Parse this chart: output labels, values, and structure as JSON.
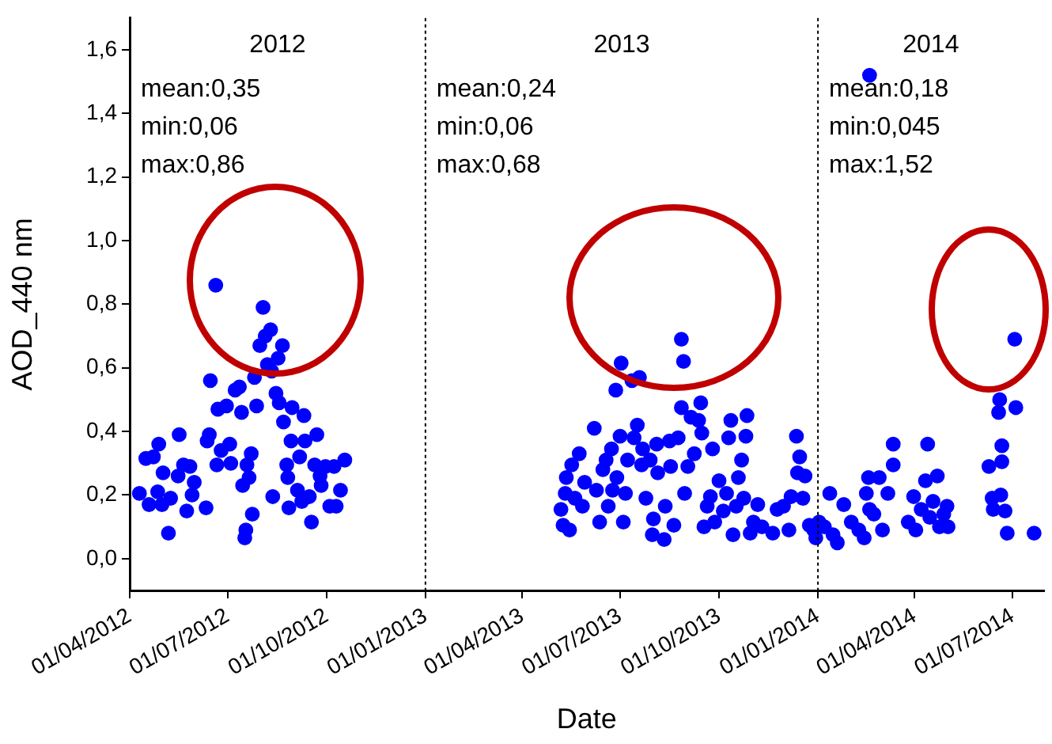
{
  "chart_data": {
    "type": "scatter",
    "xlabel": "Date",
    "ylabel": "AOD_440 nm",
    "x": [
      "2012-04-10",
      "2012-04-16",
      "2012-04-23",
      "2012-04-19",
      "2012-04-27",
      "2012-04-28",
      "2012-05-02",
      "2012-05-01",
      "2012-05-07",
      "2012-05-09",
      "2012-05-17",
      "2012-05-16",
      "2012-05-21",
      "2012-05-24",
      "2012-05-29",
      "2012-05-27",
      "2012-05-31",
      "2012-06-11",
      "2012-06-14",
      "2012-06-15",
      "2012-06-12",
      "2012-06-20",
      "2012-06-21",
      "2012-06-22",
      "2012-06-25",
      "2012-06-30",
      "2012-07-03",
      "2012-07-04",
      "2012-07-08",
      "2012-07-12",
      "2012-07-14",
      "2012-07-15",
      "2012-07-17",
      "2012-07-18",
      "2012-07-19",
      "2012-07-21",
      "2012-07-23",
      "2012-07-24",
      "2012-07-26",
      "2012-07-28",
      "2012-07-31",
      "2012-08-03",
      "2012-08-05",
      "2012-08-07",
      "2012-08-10",
      "2012-08-11",
      "2012-08-12",
      "2012-08-15",
      "2012-08-17",
      "2012-08-18",
      "2012-08-21",
      "2012-08-22",
      "2012-08-25",
      "2012-08-26",
      "2012-08-27",
      "2012-08-30",
      "2012-08-29",
      "2012-09-04",
      "2012-09-06",
      "2012-09-08",
      "2012-09-10",
      "2012-09-11",
      "2012-09-15",
      "2012-09-17",
      "2012-09-20",
      "2012-09-22",
      "2012-09-25",
      "2012-09-26",
      "2012-09-30",
      "2012-10-04",
      "2012-10-08",
      "2012-10-10",
      "2012-10-14",
      "2012-10-18",
      "2013-05-07",
      "2013-05-09",
      "2013-05-11",
      "2013-05-12",
      "2013-05-15",
      "2013-05-17",
      "2013-05-20",
      "2013-05-24",
      "2013-05-27",
      "2013-05-29",
      "2013-06-07",
      "2013-06-09",
      "2013-06-12",
      "2013-06-15",
      "2013-06-18",
      "2013-06-20",
      "2013-06-23",
      "2013-06-24",
      "2013-06-27",
      "2013-06-28",
      "2013-07-01",
      "2013-07-02",
      "2013-07-04",
      "2013-07-06",
      "2013-07-08",
      "2013-07-12",
      "2013-07-14",
      "2013-07-17",
      "2013-07-19",
      "2013-07-21",
      "2013-07-22",
      "2013-07-25",
      "2013-07-29",
      "2013-07-31",
      "2013-08-01",
      "2013-08-04",
      "2013-08-05",
      "2013-08-11",
      "2013-08-12",
      "2013-08-16",
      "2013-08-17",
      "2013-08-20",
      "2013-08-24",
      "2013-08-27",
      "2013-08-27",
      "2013-08-29",
      "2013-08-30",
      "2013-09-02",
      "2013-09-05",
      "2013-09-08",
      "2013-09-12",
      "2013-09-14",
      "2013-09-15",
      "2013-09-17",
      "2013-09-20",
      "2013-09-23",
      "2013-09-25",
      "2013-09-27",
      "2013-10-01",
      "2013-10-05",
      "2013-10-08",
      "2013-10-10",
      "2013-10-12",
      "2013-10-14",
      "2013-10-17",
      "2013-10-19",
      "2013-10-22",
      "2013-10-24",
      "2013-10-26",
      "2013-10-27",
      "2013-10-30",
      "2013-11-02",
      "2013-11-06",
      "2013-11-10",
      "2013-11-20",
      "2013-11-24",
      "2013-11-30",
      "2013-12-05",
      "2013-12-07",
      "2013-12-12",
      "2013-12-13",
      "2013-12-15",
      "2013-12-18",
      "2013-12-20",
      "2013-12-24",
      "2013-12-28",
      "2013-12-30",
      "2014-02-18",
      "2014-01-02",
      "2014-01-07",
      "2014-01-12",
      "2014-01-15",
      "2014-01-19",
      "2014-01-25",
      "2014-02-01",
      "2014-02-08",
      "2014-02-13",
      "2014-02-15",
      "2014-02-18",
      "2014-02-17",
      "2014-02-22",
      "2014-02-27",
      "2014-03-02",
      "2014-03-07",
      "2014-03-12",
      "2014-03-12",
      "2014-03-26",
      "2014-03-31",
      "2014-04-02",
      "2014-04-07",
      "2014-04-11",
      "2014-04-13",
      "2014-04-15",
      "2014-04-18",
      "2014-04-22",
      "2014-04-24",
      "2014-04-28",
      "2014-05-01",
      "2014-05-02",
      "2014-06-09",
      "2014-06-12",
      "2014-06-13",
      "2014-06-18",
      "2014-06-19",
      "2014-06-21",
      "2014-06-21",
      "2014-06-20",
      "2014-06-24",
      "2014-06-26",
      "2014-07-03",
      "2014-07-04",
      "2014-07-21"
    ],
    "values": [
      0.205,
      0.315,
      0.32,
      0.17,
      0.21,
      0.36,
      0.27,
      0.17,
      0.08,
      0.19,
      0.39,
      0.26,
      0.295,
      0.15,
      0.2,
      0.29,
      0.24,
      0.16,
      0.39,
      0.56,
      0.37,
      0.86,
      0.295,
      0.47,
      0.34,
      0.48,
      0.36,
      0.3,
      0.53,
      0.54,
      0.46,
      0.23,
      0.065,
      0.09,
      0.295,
      0.255,
      0.33,
      0.14,
      0.57,
      0.48,
      0.67,
      0.79,
      0.7,
      0.61,
      0.72,
      0.59,
      0.195,
      0.52,
      0.63,
      0.49,
      0.67,
      0.43,
      0.295,
      0.255,
      0.16,
      0.475,
      0.37,
      0.215,
      0.32,
      0.18,
      0.45,
      0.37,
      0.195,
      0.115,
      0.295,
      0.39,
      0.26,
      0.23,
      0.29,
      0.165,
      0.29,
      0.165,
      0.215,
      0.31,
      0.155,
      0.105,
      0.205,
      0.255,
      0.09,
      0.295,
      0.19,
      0.33,
      0.165,
      0.24,
      0.41,
      0.215,
      0.115,
      0.28,
      0.31,
      0.165,
      0.345,
      0.215,
      0.53,
      0.255,
      0.385,
      0.615,
      0.115,
      0.205,
      0.31,
      0.56,
      0.38,
      0.42,
      0.57,
      0.295,
      0.345,
      0.19,
      0.31,
      0.075,
      0.125,
      0.36,
      0.27,
      0.06,
      0.165,
      0.37,
      0.29,
      0.105,
      0.38,
      0.475,
      0.69,
      0.62,
      0.205,
      0.29,
      0.445,
      0.33,
      0.435,
      0.49,
      0.395,
      0.1,
      0.165,
      0.195,
      0.345,
      0.115,
      0.245,
      0.15,
      0.205,
      0.38,
      0.435,
      0.075,
      0.165,
      0.255,
      0.31,
      0.19,
      0.385,
      0.45,
      0.08,
      0.115,
      0.17,
      0.1,
      0.08,
      0.155,
      0.165,
      0.09,
      0.195,
      0.385,
      0.27,
      0.32,
      0.19,
      0.26,
      0.105,
      0.09,
      0.065,
      1.52,
      0.115,
      0.1,
      0.205,
      0.075,
      0.05,
      0.17,
      0.115,
      0.09,
      0.065,
      0.205,
      0.155,
      0.255,
      0.14,
      0.255,
      0.09,
      0.205,
      0.295,
      0.36,
      0.115,
      0.195,
      0.09,
      0.155,
      0.245,
      0.36,
      0.13,
      0.18,
      0.26,
      0.1,
      0.14,
      0.165,
      0.1,
      0.29,
      0.19,
      0.155,
      0.46,
      0.5,
      0.355,
      0.305,
      0.2,
      0.15,
      0.08,
      0.69,
      0.475,
      0.08
    ],
    "color": "#0000ff",
    "marker": "circle",
    "xlim": [
      "2012-04-01",
      "2014-07-30"
    ],
    "xticks": [
      {
        "value": "2012-04-01",
        "label": "01/04/2012"
      },
      {
        "value": "2012-07-01",
        "label": "01/07/2012"
      },
      {
        "value": "2012-10-01",
        "label": "01/10/2012"
      },
      {
        "value": "2013-01-01",
        "label": "01/01/2013"
      },
      {
        "value": "2013-04-01",
        "label": "01/04/2013"
      },
      {
        "value": "2013-07-01",
        "label": "01/07/2013"
      },
      {
        "value": "2013-10-01",
        "label": "01/10/2013"
      },
      {
        "value": "2014-01-01",
        "label": "01/01/2014"
      },
      {
        "value": "2014-04-01",
        "label": "01/04/2014"
      },
      {
        "value": "2014-07-01",
        "label": "01/07/2014"
      }
    ],
    "ylim": [
      -0.1,
      1.7
    ],
    "yticks": [
      {
        "value": 0,
        "label": "0,0"
      },
      {
        "value": 0.2,
        "label": "0,2"
      },
      {
        "value": 0.4,
        "label": "0,4"
      },
      {
        "value": 0.6,
        "label": "0,6"
      },
      {
        "value": 0.8,
        "label": "0,8"
      },
      {
        "value": 1.0,
        "label": "1,0"
      },
      {
        "value": 1.2,
        "label": "1,2"
      },
      {
        "value": 1.4,
        "label": "1,4"
      },
      {
        "value": 1.6,
        "label": "1,6"
      }
    ],
    "ref_lines": [
      {
        "axis": "x",
        "value": "2013-01-01",
        "color": "#000000",
        "line_style": "dotted"
      },
      {
        "axis": "x",
        "value": "2014-01-01",
        "color": "#000000",
        "line_style": "dotted"
      }
    ],
    "annotations": [
      "2012",
      "mean:0,35",
      "min:0,06",
      "max:0,86",
      "2013",
      "mean:0,24",
      "min:0,06",
      "max:0,68",
      "2014",
      "mean:0,18",
      "min:0,045",
      "max:1,52"
    ],
    "grid": false,
    "legend": false
  }
}
